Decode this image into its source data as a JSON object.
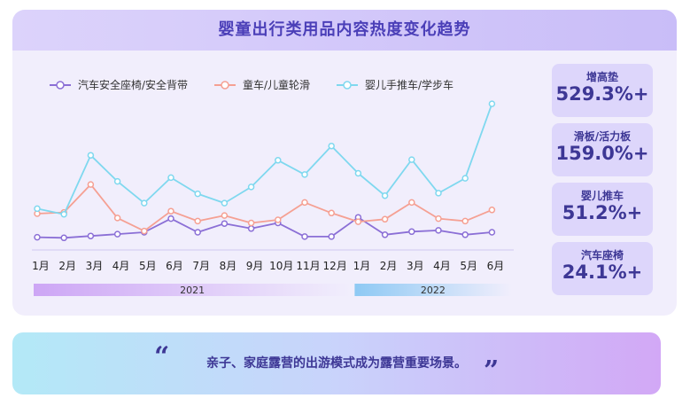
{
  "title": "婴童出行类用品内容热度变化趋势",
  "chart_data": {
    "type": "line",
    "title": "婴童出行类用品内容热度变化趋势",
    "categories": [
      "1月",
      "2月",
      "3月",
      "4月",
      "5月",
      "6月",
      "7月",
      "8月",
      "9月",
      "10月",
      "11月",
      "12月",
      "1月",
      "2月",
      "3月",
      "4月",
      "5月",
      "6月"
    ],
    "year_groups": [
      {
        "label": "2021",
        "start": 0,
        "end": 11
      },
      {
        "label": "2022",
        "start": 12,
        "end": 17
      }
    ],
    "legend_position": "top-left",
    "series": [
      {
        "name": "汽车安全座椅/安全背带",
        "color": "#8b6fd6",
        "values": [
          12,
          11,
          14,
          17,
          20,
          42,
          20,
          34,
          26,
          35,
          13,
          13,
          44,
          16,
          21,
          23,
          16,
          20
        ]
      },
      {
        "name": "童车/儿童轮滑",
        "color": "#f5a093",
        "values": [
          50,
          52,
          97,
          43,
          22,
          54,
          38,
          47,
          35,
          40,
          68,
          51,
          37,
          41,
          68,
          42,
          38,
          56
        ]
      },
      {
        "name": "婴儿手推车/学步车",
        "color": "#7fd8ef",
        "values": [
          58,
          49,
          144,
          102,
          67,
          108,
          82,
          67,
          93,
          136,
          113,
          159,
          115,
          79,
          137,
          83,
          107,
          227
        ]
      }
    ],
    "ylim": [
      0,
      240
    ]
  },
  "stats": [
    {
      "label": "增高垫",
      "value": "529.3%+"
    },
    {
      "label": "滑板/活力板",
      "value": "159.0%+"
    },
    {
      "label": "婴儿推车",
      "value": "51.2%+"
    },
    {
      "label": "汽车座椅",
      "value": "24.1%+"
    }
  ],
  "colors": {
    "year_2021_bar": "#cda6f5",
    "year_2022_bar": "#8ec9f4",
    "accent": "#3d3795"
  },
  "banner": {
    "quote_open": "“",
    "text": "亲子、家庭露营的出游模式成为露营重要场景。",
    "quote_close": "”"
  }
}
